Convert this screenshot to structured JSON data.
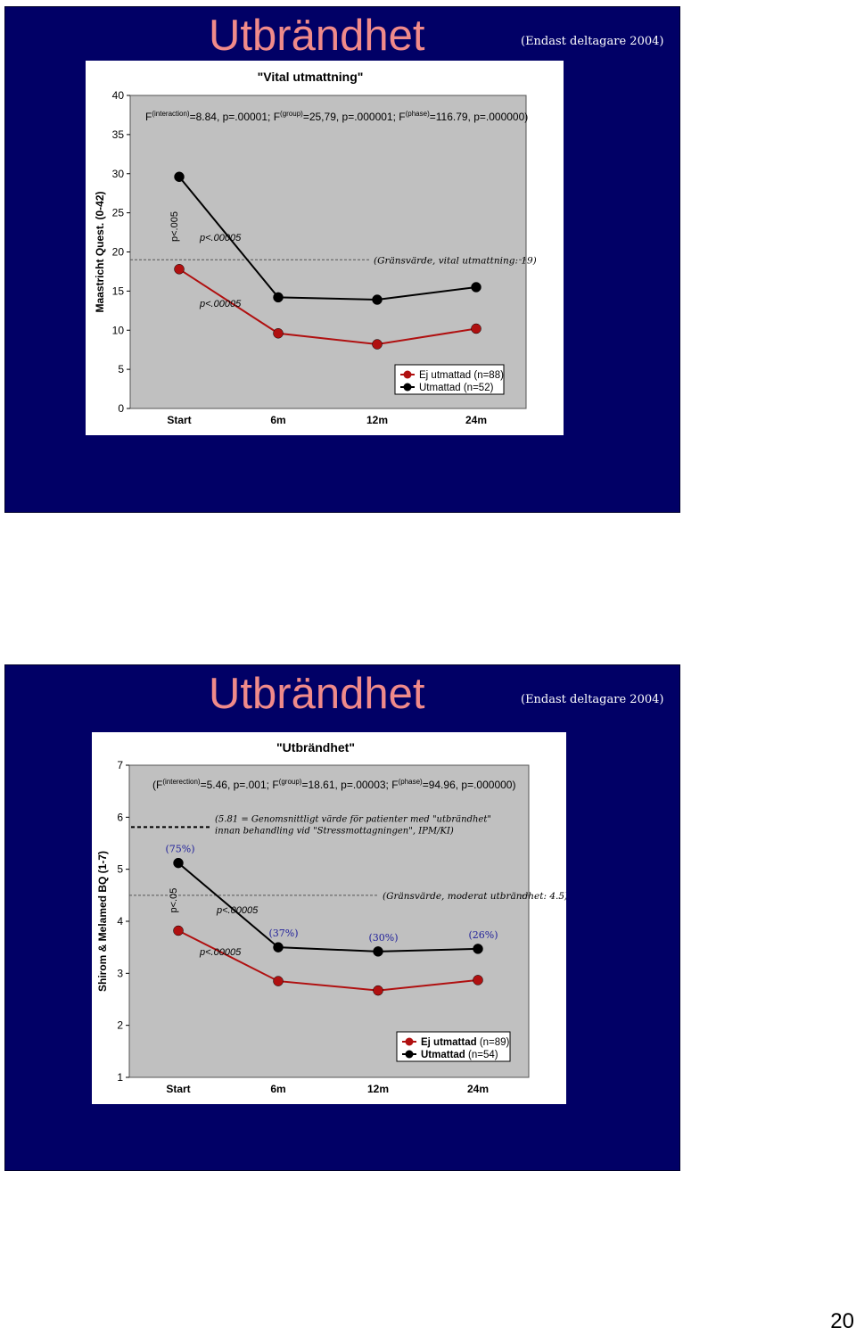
{
  "page": {
    "number": "20"
  },
  "slides": [
    {
      "title": "Utbrändhet",
      "note": "(Endast deltagare 2004)"
    },
    {
      "title": "Utbrändhet",
      "note": "(Endast deltagare 2004)"
    }
  ],
  "colors": {
    "slide_bg": "#010066",
    "title_color": "#f08a8a",
    "plot_bg": "#c0c0c0",
    "series_red": "#b01010",
    "series_black": "#000000",
    "annotation_blue": "#20209a"
  },
  "chart_data": [
    {
      "type": "line",
      "title": "\"Vital utmattning\"",
      "ylabel": "Maastricht Quest. (0-42)",
      "xlabel": "",
      "categories": [
        "Start",
        "6m",
        "12m",
        "24m"
      ],
      "ylim": [
        0,
        40
      ],
      "yticks": [
        0,
        5,
        10,
        15,
        20,
        25,
        30,
        35,
        40
      ],
      "grid": false,
      "legend_position": "bottom-right",
      "series": [
        {
          "name": "Ej utmattad (n=88)",
          "color": "#b01010",
          "values": [
            17.8,
            9.6,
            8.2,
            10.2
          ]
        },
        {
          "name": "Utmattad (n=52)",
          "color": "#000000",
          "values": [
            29.6,
            14.2,
            13.9,
            15.5
          ]
        }
      ],
      "stats": {
        "p1": "F",
        "s1": "(interaction)",
        "t1": "=8.84, p=.00001; ",
        "p2": "F",
        "s2": "(group)",
        "t2": "=25,79, p=.000001; ",
        "p3": "F",
        "s3": "(phase)",
        "t3": "=116.79, p=.000000)"
      },
      "threshold": {
        "value": 19,
        "label": "(Gränsvärde, vital utmattning: 19)"
      },
      "annotations": {
        "p_rotated": "p<.005",
        "p_black": "p<.00005",
        "p_red": "p<.00005"
      }
    },
    {
      "type": "line",
      "title": "\"Utbrändhet\"",
      "ylabel": "Shirom & Melamed BQ (1-7)",
      "xlabel": "",
      "categories": [
        "Start",
        "6m",
        "12m",
        "24m"
      ],
      "ylim": [
        1,
        7
      ],
      "yticks": [
        1,
        2,
        3,
        4,
        5,
        6,
        7
      ],
      "grid": false,
      "legend_position": "bottom-right",
      "series": [
        {
          "name": "Ej utmattad (n=89)",
          "name_bold": "Ej utmattad",
          "name_rest": " (n=89)",
          "color": "#b01010",
          "values": [
            3.82,
            2.85,
            2.67,
            2.87
          ]
        },
        {
          "name": "Utmattad (n=54)",
          "name_bold": "Utmattad",
          "name_rest": " (n=54)",
          "color": "#000000",
          "values": [
            5.12,
            3.5,
            3.42,
            3.47
          ]
        }
      ],
      "stats": {
        "p1": "(F",
        "s1": "(interection)",
        "t1": "=5.46, p=.001; ",
        "p2": "F",
        "s2": "(group)",
        "t2": "=18.61, p=.00003; ",
        "p3": "F",
        "s3": "(phase)",
        "t3": "=94.96, p=.000000)"
      },
      "threshold": {
        "value": 4.5,
        "label": "(Gränsvärde, moderat utbrändhet: 4.5)"
      },
      "reference": {
        "value": 5.81,
        "line1": "(5.81 = Genomsnittligt värde för patienter med \"utbrändhet\"",
        "line2": "innan behandling vid \"Stressmottagningen\", IPM/KI)"
      },
      "percent_labels": [
        "(75%)",
        "(37%)",
        "(30%)",
        "(26%)"
      ],
      "annotations": {
        "p_rotated": "p<.05",
        "p_black": "p<.00005",
        "p_red": "p<.00005"
      }
    }
  ]
}
